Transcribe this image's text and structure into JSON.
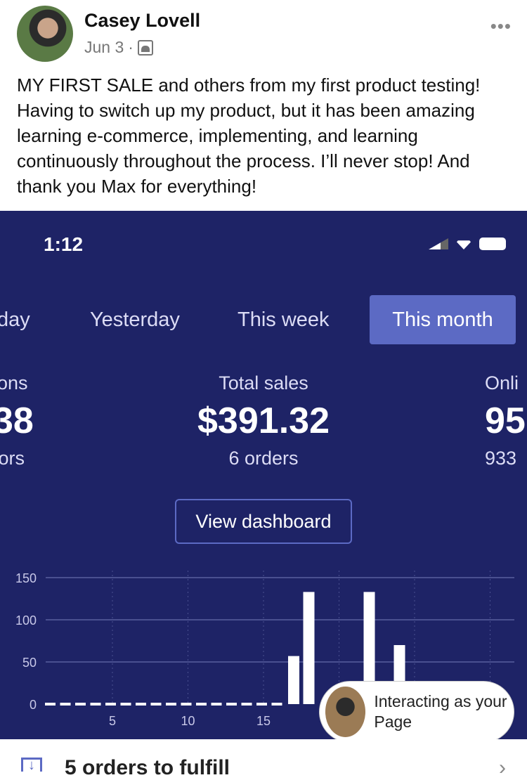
{
  "post": {
    "author": "Casey Lovell",
    "date": "Jun 3",
    "separator": "·",
    "audience_icon": "group-icon",
    "more_icon": "•••",
    "text": "MY FIRST SALE and others from my first product testing! Having to switch up my product, but it has been amazing learning e-commerce, implementing, and learning continuously throughout the process. I’ll never stop! And thank you Max for everything!"
  },
  "phone": {
    "time": "1:12"
  },
  "tabs": [
    "day",
    "Yesterday",
    "This week",
    "This month"
  ],
  "active_tab": "This month",
  "stats": {
    "left": {
      "label": "ions",
      "value": "38",
      "sub": "tors"
    },
    "center": {
      "label": "Total sales",
      "value": "$391.32",
      "sub": "6 orders"
    },
    "right": {
      "label": "Onli",
      "value": "95",
      "sub": "933"
    }
  },
  "view_dashboard": "View dashboard",
  "colors": {
    "background": "#1e2366",
    "accent": "#5c6ac4"
  },
  "chart_data": {
    "type": "bar",
    "x_ticks": [
      "5",
      "10",
      "15"
    ],
    "y_ticks": [
      "0",
      "50",
      "100",
      "150"
    ],
    "ylim": [
      0,
      150
    ],
    "zero_days": [
      1,
      2,
      3,
      4,
      5,
      6,
      7,
      8,
      9,
      10,
      11,
      12,
      13,
      14,
      15,
      16
    ],
    "bars": [
      {
        "day": 17,
        "value": 57
      },
      {
        "day": 18,
        "value": 133
      },
      {
        "day": 22,
        "value": 133
      },
      {
        "day": 24,
        "value": 70
      }
    ]
  },
  "overlay": {
    "text": "Interacting as your Page"
  },
  "footer": {
    "text": "5 orders to fulfill"
  }
}
